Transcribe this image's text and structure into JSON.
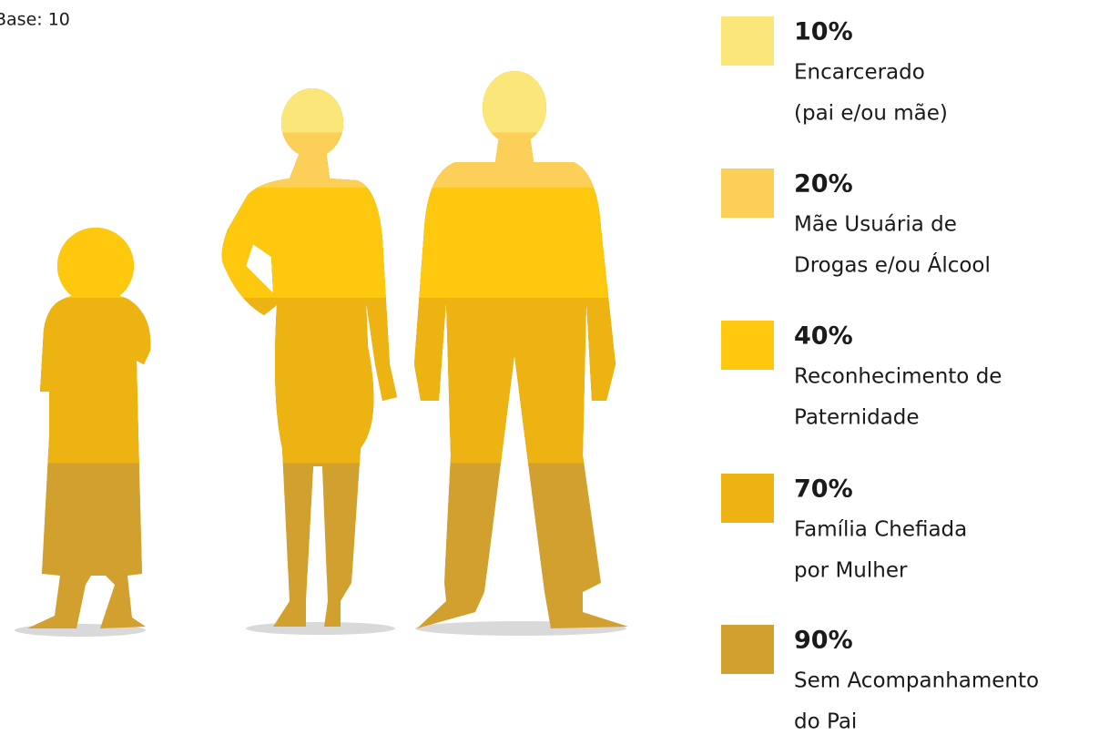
{
  "chart_data": {
    "type": "pictogram",
    "subtitle": "Base: 10",
    "categories": [
      [
        "Encarcerado",
        "(pai e/ou mãe)"
      ],
      [
        "Mãe Usuária de",
        "Drogas e/ou Álcool"
      ],
      [
        "Reconhecimento de",
        "Paternidade"
      ],
      [
        "Família Chefiada",
        "por Mulher"
      ],
      [
        "Sem Acompanhamento",
        "do Pai"
      ]
    ],
    "values": [
      10,
      20,
      40,
      70,
      90
    ],
    "value_labels": [
      "10%",
      "20%",
      "40%",
      "70%",
      "90%"
    ],
    "colors": [
      "#fbe67a",
      "#fbcf58",
      "#fdc80e",
      "#ecb312",
      "#d1a02e"
    ],
    "ylim": [
      0,
      100
    ]
  }
}
